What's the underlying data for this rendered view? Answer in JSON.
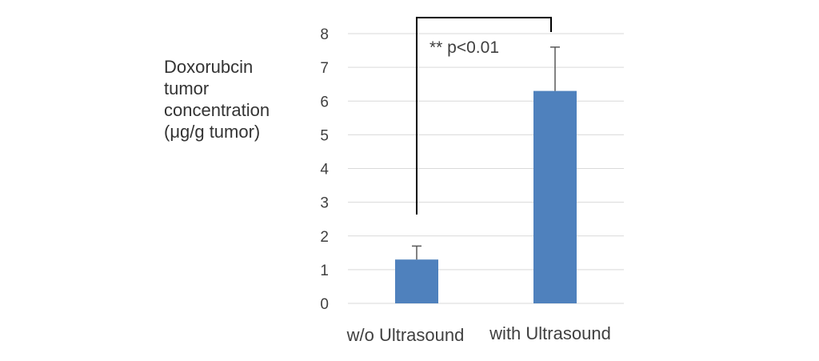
{
  "chart_data": {
    "type": "bar",
    "categories": [
      "w/o Ultrasound",
      "with Ultrasound"
    ],
    "values": [
      1.3,
      6.3
    ],
    "error_upper": [
      1.7,
      7.6
    ],
    "ylabel": "Doxorubcin\ntumor\nconcentration\n(μg/g tumor)",
    "ylim": [
      0,
      8
    ],
    "yticks": [
      "0",
      "1",
      "2",
      "3",
      "4",
      "5",
      "6",
      "7",
      "8"
    ],
    "grid": true,
    "legend": "none",
    "annotation": "** p<0.01",
    "colors": {
      "bar": "#4f81bd",
      "grid": "#d9d9d9",
      "text": "#404040",
      "bracket": "#000000",
      "error": "#595959"
    }
  }
}
